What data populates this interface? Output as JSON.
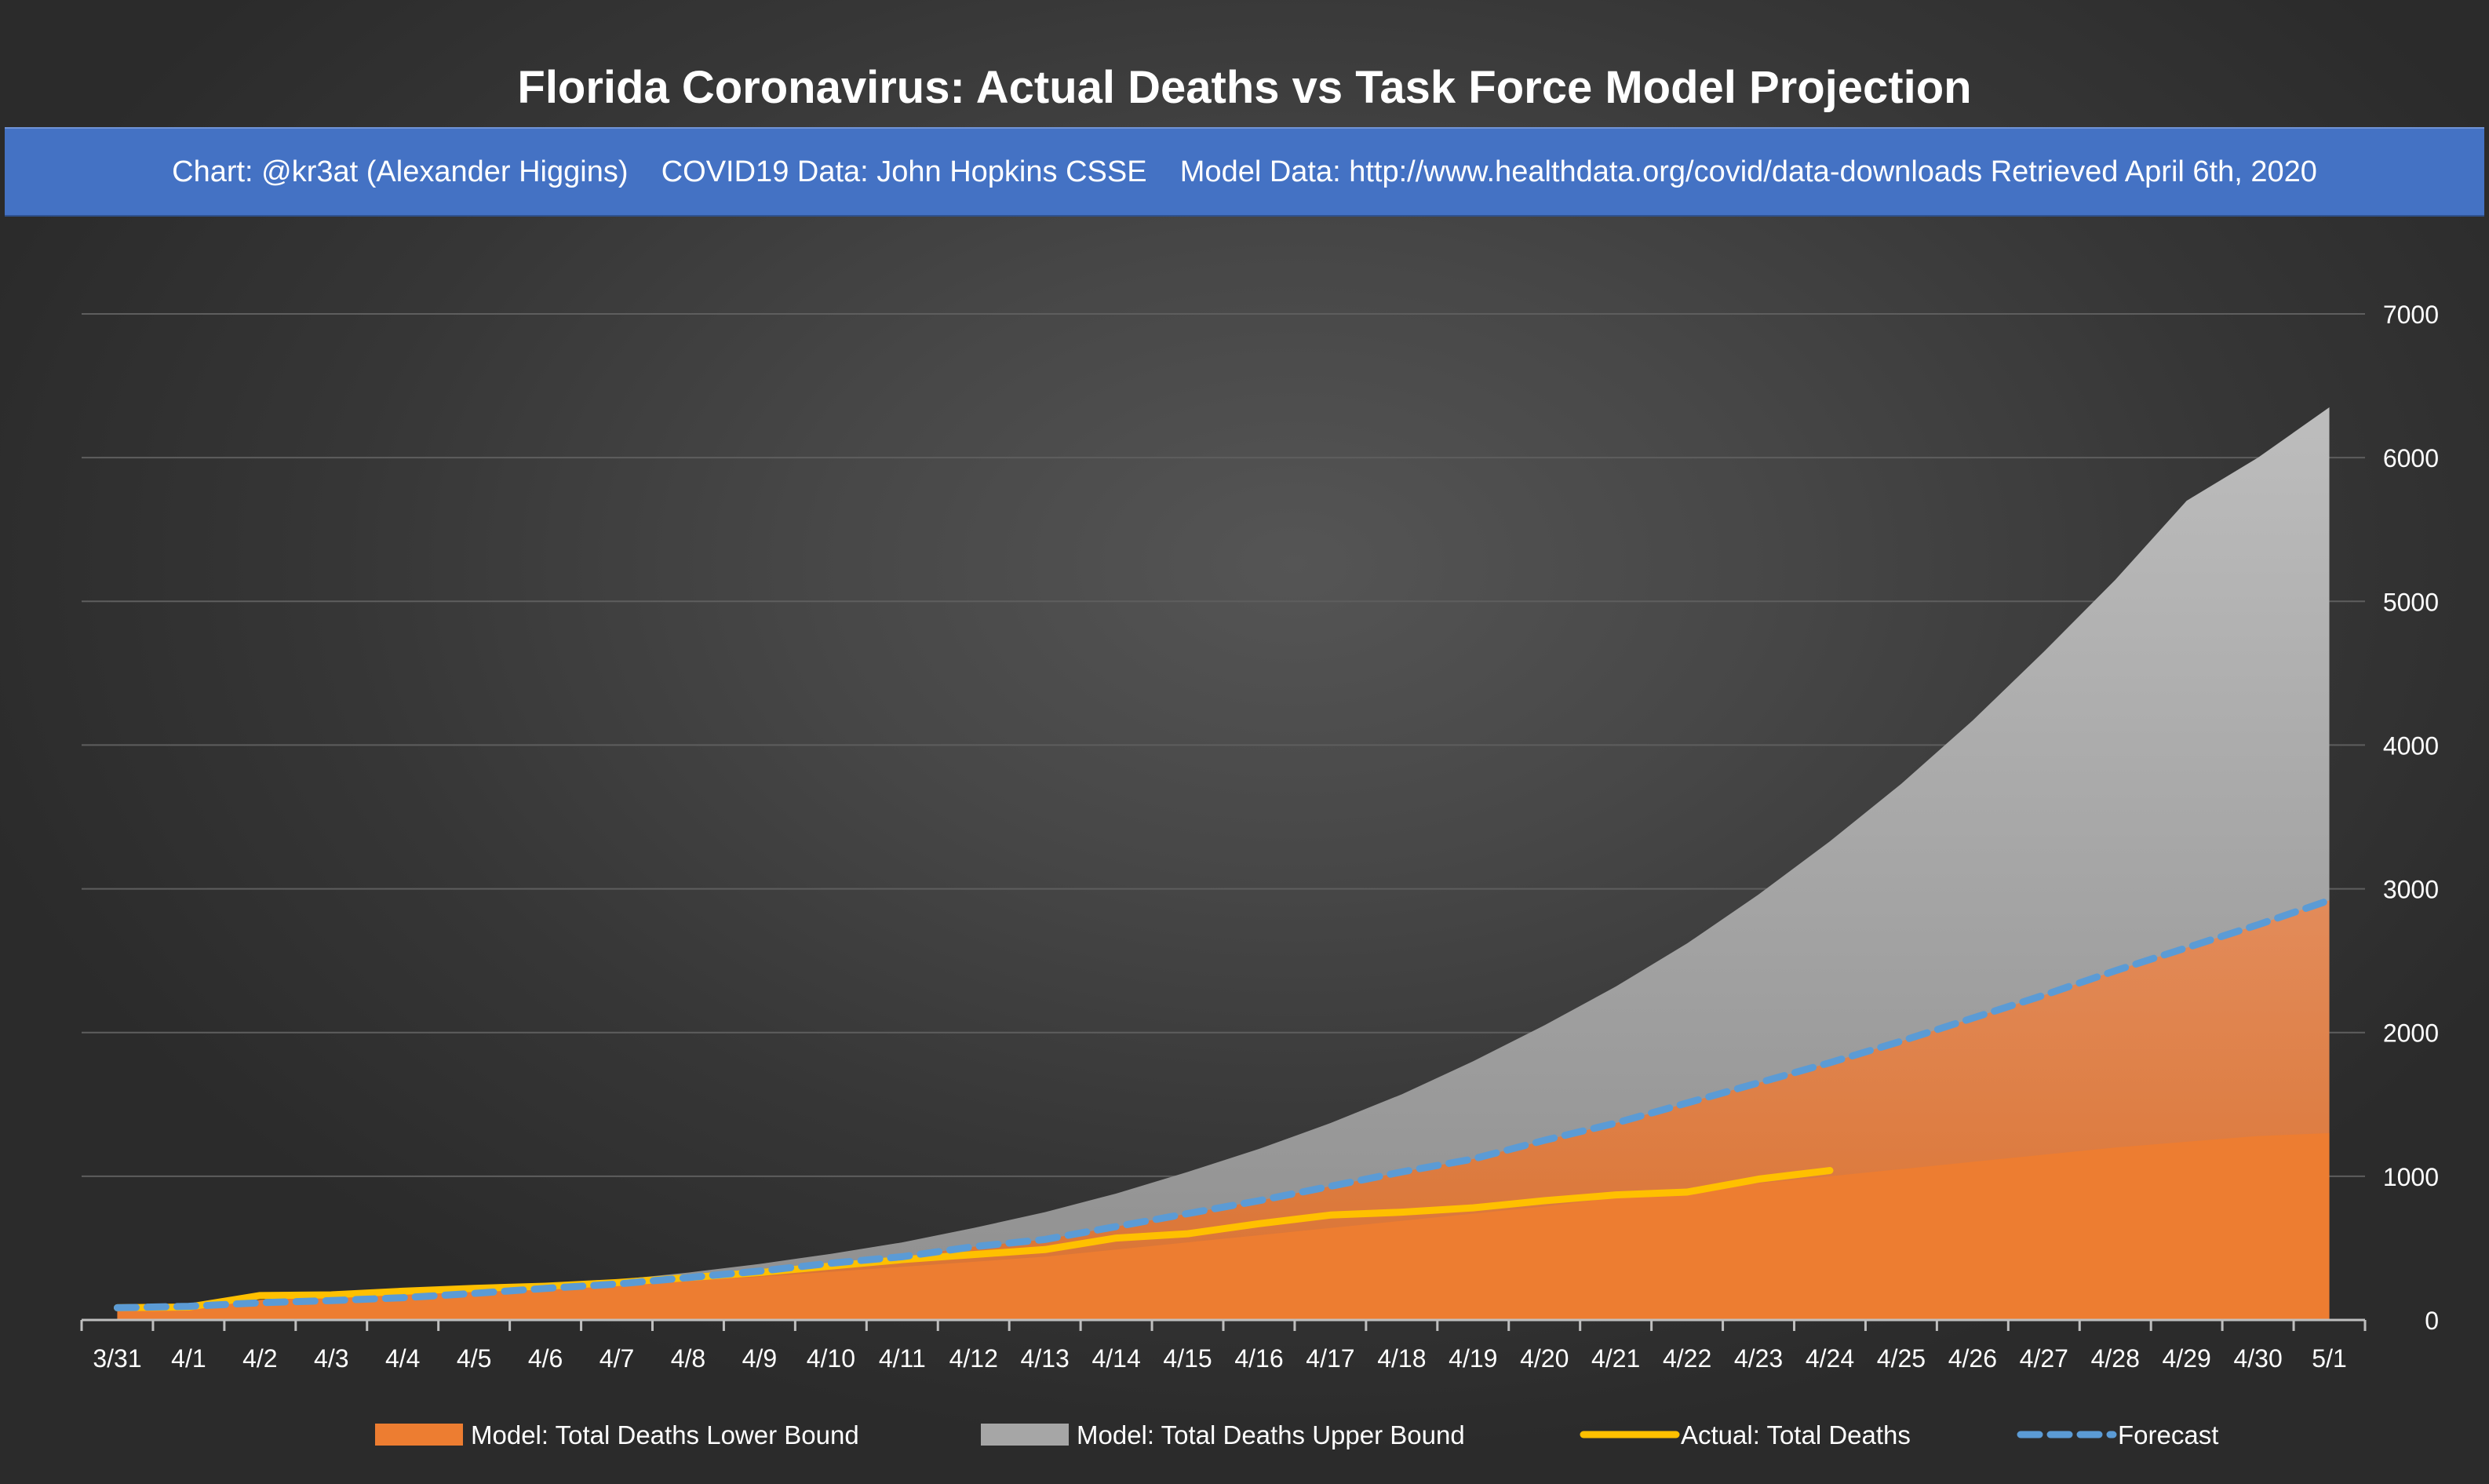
{
  "chart_data": {
    "type": "area",
    "title": "Florida Coronavirus: Actual Deaths vs Task Force Model Projection",
    "subtitle": "Chart: @kr3at (Alexander Higgins)    COVID19 Data: John Hopkins CSSE    Model Data: http://www.healthdata.org/covid/data-downloads Retrieved April 6th, 2020",
    "categories": [
      "3/31",
      "4/1",
      "4/2",
      "4/3",
      "4/4",
      "4/5",
      "4/6",
      "4/7",
      "4/8",
      "4/9",
      "4/10",
      "4/11",
      "4/12",
      "4/13",
      "4/14",
      "4/15",
      "4/16",
      "4/17",
      "4/18",
      "4/19",
      "4/20",
      "4/21",
      "4/22",
      "4/23",
      "4/24",
      "4/25",
      "4/26",
      "4/27",
      "4/28",
      "4/29",
      "4/30",
      "5/1"
    ],
    "yaxis": {
      "position": "right",
      "min": 0,
      "max": 7000,
      "ticks": [
        0,
        1000,
        2000,
        3000,
        4000,
        5000,
        6000,
        7000
      ]
    },
    "grid": true,
    "legend_position": "bottom",
    "series": [
      {
        "name": "Model: Total Deaths Lower Bound",
        "kind": "area",
        "color": "#ed7d31",
        "values": [
          85,
          110,
          140,
          160,
          185,
          205,
          225,
          250,
          275,
          300,
          335,
          370,
          405,
          440,
          490,
          540,
          590,
          640,
          690,
          740,
          790,
          850,
          900,
          950,
          1000,
          1050,
          1100,
          1150,
          1200,
          1240,
          1280,
          1300
        ]
      },
      {
        "name": "Model: Total Deaths Upper Bound",
        "kind": "area",
        "color": "#a6a6a6",
        "values": [
          85,
          110,
          140,
          165,
          190,
          215,
          240,
          280,
          330,
          390,
          460,
          540,
          640,
          750,
          880,
          1030,
          1190,
          1370,
          1570,
          1800,
          2050,
          2320,
          2620,
          2960,
          3330,
          3730,
          4170,
          4650,
          5150,
          5700,
          6000,
          6350
        ]
      },
      {
        "name": "Actual: Total Deaths",
        "kind": "line",
        "color": "#ffc000",
        "values": [
          85,
          90,
          170,
          175,
          200,
          220,
          235,
          260,
          295,
          330,
          375,
          420,
          455,
          490,
          570,
          600,
          670,
          730,
          750,
          780,
          830,
          870,
          890,
          980,
          1040,
          null,
          null,
          null,
          null,
          null,
          null,
          null
        ]
      },
      {
        "name": "Forecast",
        "kind": "dashed-line",
        "color": "#5b9bd5",
        "values": [
          85,
          95,
          120,
          135,
          155,
          185,
          220,
          250,
          295,
          340,
          395,
          440,
          510,
          560,
          650,
          740,
          830,
          930,
          1030,
          1120,
          1250,
          1370,
          1510,
          1650,
          1790,
          1940,
          2100,
          2260,
          2430,
          2590,
          2750,
          2920
        ]
      }
    ]
  }
}
